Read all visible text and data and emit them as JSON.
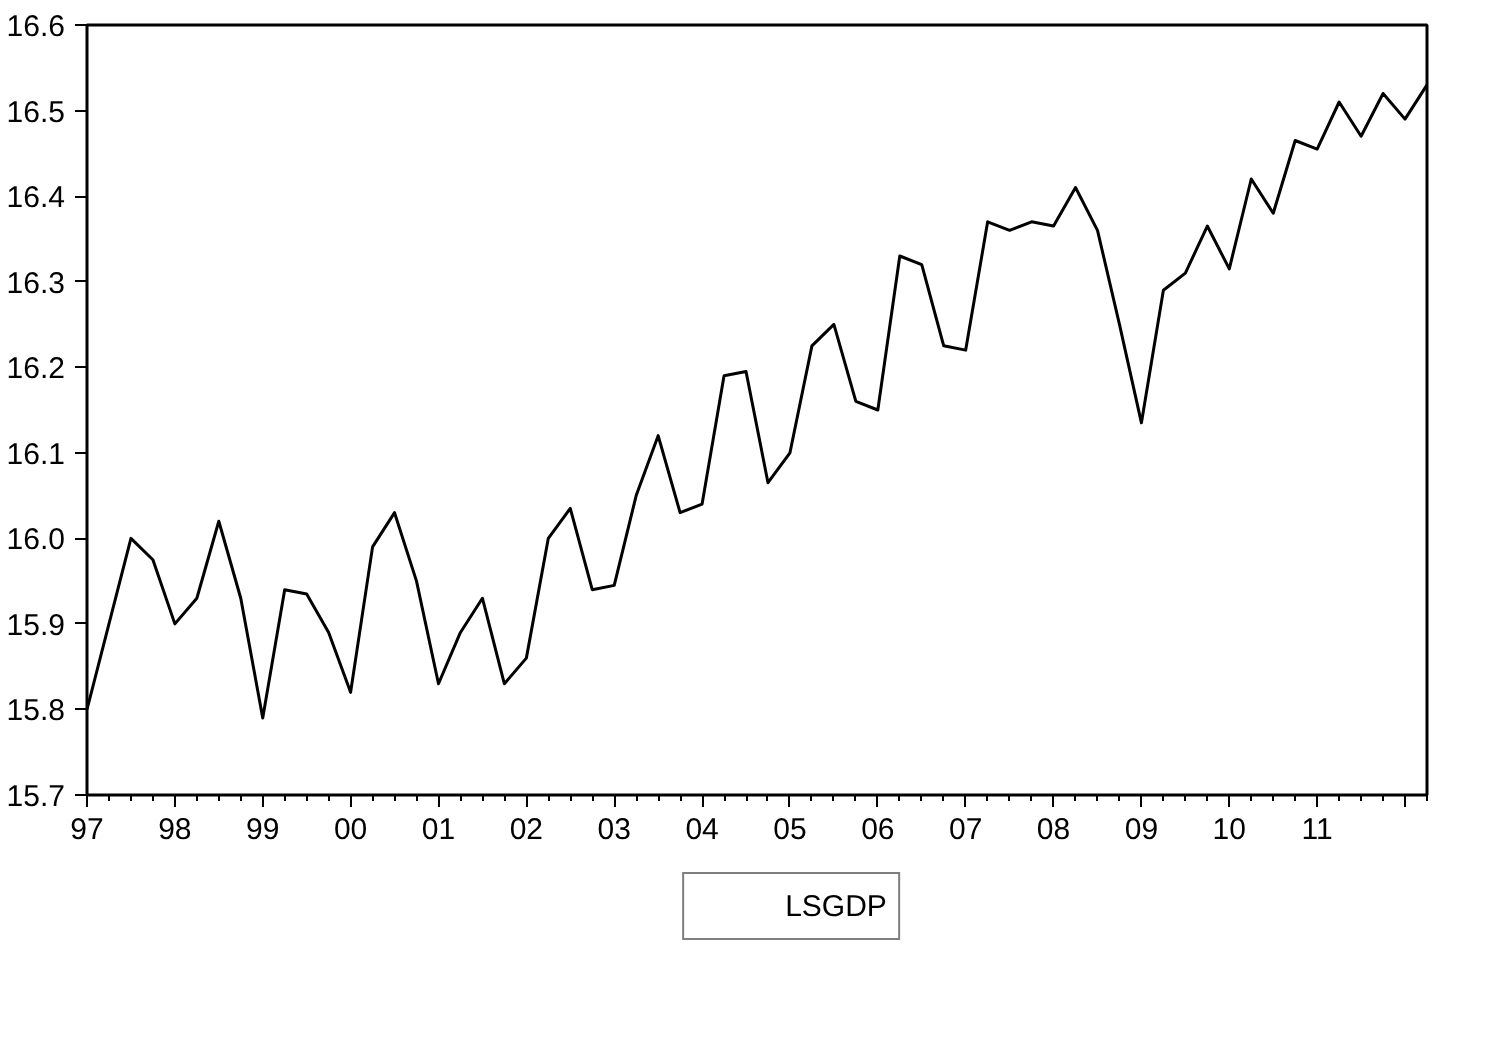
{
  "chart_data": {
    "type": "line",
    "xlim": [
      1997,
      2012.25
    ],
    "ylim": [
      15.7,
      16.6
    ],
    "xticks": [
      {
        "value": 1997,
        "label": "97"
      },
      {
        "value": 1998,
        "label": "98"
      },
      {
        "value": 1999,
        "label": "99"
      },
      {
        "value": 2000,
        "label": "00"
      },
      {
        "value": 2001,
        "label": "01"
      },
      {
        "value": 2002,
        "label": "02"
      },
      {
        "value": 2003,
        "label": "03"
      },
      {
        "value": 2004,
        "label": "04"
      },
      {
        "value": 2005,
        "label": "05"
      },
      {
        "value": 2006,
        "label": "06"
      },
      {
        "value": 2007,
        "label": "07"
      },
      {
        "value": 2008,
        "label": "08"
      },
      {
        "value": 2009,
        "label": "09"
      },
      {
        "value": 2010,
        "label": "10"
      },
      {
        "value": 2011,
        "label": "11"
      },
      {
        "value": 2012,
        "label": null
      }
    ],
    "yticks": [
      {
        "value": 15.7,
        "label": "15.7"
      },
      {
        "value": 15.8,
        "label": "15.8"
      },
      {
        "value": 15.9,
        "label": "15.9"
      },
      {
        "value": 16.0,
        "label": "16.0"
      },
      {
        "value": 16.1,
        "label": "16.1"
      },
      {
        "value": 16.2,
        "label": "16.2"
      },
      {
        "value": 16.3,
        "label": "16.3"
      },
      {
        "value": 16.4,
        "label": "16.4"
      },
      {
        "value": 16.5,
        "label": "16.5"
      },
      {
        "value": 16.6,
        "label": "16.6"
      }
    ],
    "grid": false,
    "legend": "bottom",
    "marker": "none",
    "line_style": "solid",
    "x": [
      1997,
      1997.25,
      1997.5,
      1997.75,
      1998,
      1998.25,
      1998.5,
      1998.75,
      1999,
      1999.25,
      1999.5,
      1999.75,
      2000,
      2000.25,
      2000.5,
      2000.75,
      2001,
      2001.25,
      2001.5,
      2001.75,
      2002,
      2002.25,
      2002.5,
      2002.75,
      2003,
      2003.25,
      2003.5,
      2003.75,
      2004,
      2004.25,
      2004.5,
      2004.75,
      2005,
      2005.25,
      2005.5,
      2005.75,
      2006,
      2006.25,
      2006.5,
      2006.75,
      2007,
      2007.25,
      2007.5,
      2007.75,
      2008,
      2008.25,
      2008.5,
      2008.75,
      2009,
      2009.25,
      2009.5,
      2009.75,
      2010,
      2010.25,
      2010.5,
      2010.75,
      2011,
      2011.25,
      2011.5,
      2011.75,
      2012,
      2012.25
    ],
    "series": [
      {
        "name": "LSGDP",
        "color": "#000000",
        "values": [
          15.8,
          15.9,
          16.0,
          15.975,
          15.9,
          15.93,
          16.02,
          15.93,
          15.79,
          15.94,
          15.935,
          15.89,
          15.82,
          15.99,
          16.03,
          15.95,
          15.83,
          15.89,
          15.93,
          15.83,
          15.86,
          16.0,
          16.035,
          15.94,
          15.945,
          16.05,
          16.12,
          16.03,
          16.04,
          16.19,
          16.195,
          16.065,
          16.1,
          16.225,
          16.25,
          16.16,
          16.15,
          16.33,
          16.32,
          16.225,
          16.22,
          16.37,
          16.36,
          16.37,
          16.365,
          16.41,
          16.36,
          16.25,
          16.135,
          16.29,
          16.31,
          16.365,
          16.315,
          16.42,
          16.38,
          16.465,
          16.455,
          16.51,
          16.47,
          16.52,
          16.49,
          16.53
        ]
      }
    ]
  }
}
